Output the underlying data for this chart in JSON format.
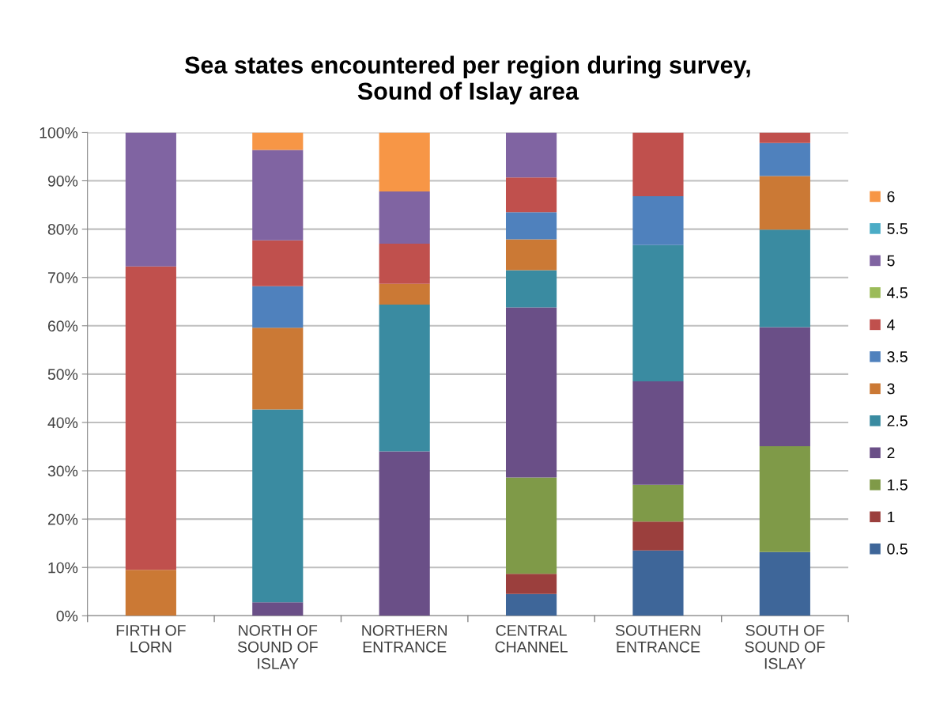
{
  "chart_data": {
    "type": "bar",
    "stacked": true,
    "title": "Sea states encountered per region during survey,\nSound of Islay area",
    "categories": [
      "FIRTH OF\nLORN",
      "NORTH OF\nSOUND OF\nISLAY",
      "NORTHERN\nENTRANCE",
      "CENTRAL\nCHANNEL",
      "SOUTHERN\nENTRANCE",
      "SOUTH OF\nSOUND OF\nISLAY"
    ],
    "ylim": [
      0,
      100
    ],
    "yticks": [
      {
        "value": 0,
        "label": "0%"
      },
      {
        "value": 10,
        "label": "10%"
      },
      {
        "value": 20,
        "label": "20%"
      },
      {
        "value": 30,
        "label": "30%"
      },
      {
        "value": 40,
        "label": "40%"
      },
      {
        "value": 50,
        "label": "50%"
      },
      {
        "value": 60,
        "label": "60%"
      },
      {
        "value": 70,
        "label": "70%"
      },
      {
        "value": 80,
        "label": "80%"
      },
      {
        "value": 90,
        "label": "90%"
      },
      {
        "value": 100,
        "label": "100%"
      }
    ],
    "grid": "y",
    "legend": "right",
    "series": [
      {
        "name": "0.5",
        "color": "#3e6699",
        "values": [
          null,
          null,
          null,
          4.5,
          13.5,
          13.2
        ]
      },
      {
        "name": "1",
        "color": "#9b3f3d",
        "values": [
          null,
          null,
          null,
          4.2,
          6.0,
          null
        ]
      },
      {
        "name": "1.5",
        "color": "#7f9a48",
        "values": [
          null,
          null,
          null,
          19.9,
          7.6,
          21.9
        ]
      },
      {
        "name": "2",
        "color": "#6a4f87",
        "values": [
          null,
          2.8,
          34.0,
          35.2,
          21.4,
          24.6
        ]
      },
      {
        "name": "2.5",
        "color": "#3a8ba1",
        "values": [
          null,
          39.9,
          30.4,
          7.7,
          28.2,
          20.2
        ]
      },
      {
        "name": "3",
        "color": "#cb7935",
        "values": [
          9.5,
          16.9,
          4.3,
          6.4,
          null,
          11.1
        ]
      },
      {
        "name": "3.5",
        "color": "#4f81bd",
        "values": [
          null,
          8.6,
          null,
          5.6,
          10.1,
          6.8
        ]
      },
      {
        "name": "4",
        "color": "#c0504d",
        "values": [
          62.8,
          9.5,
          8.3,
          7.2,
          13.2,
          2.2
        ]
      },
      {
        "name": "4.5",
        "color": "#9bbb59",
        "values": [
          null,
          null,
          null,
          null,
          null,
          null
        ]
      },
      {
        "name": "5",
        "color": "#8064a2",
        "values": [
          27.7,
          18.7,
          10.8,
          9.3,
          null,
          null
        ]
      },
      {
        "name": "5.5",
        "color": "#4bacc6",
        "values": [
          null,
          null,
          null,
          null,
          null,
          null
        ]
      },
      {
        "name": "6",
        "color": "#f79646",
        "values": [
          null,
          3.6,
          12.2,
          null,
          null,
          null
        ]
      }
    ]
  }
}
